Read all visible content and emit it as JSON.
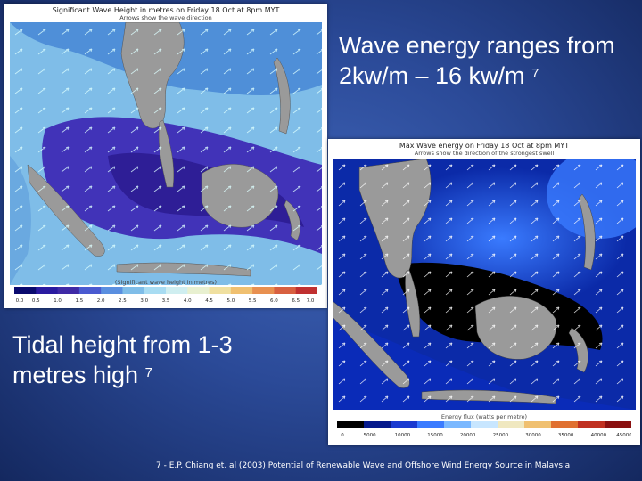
{
  "slide": {
    "wave_energy_text": "Wave energy ranges from 2kw/m – 16 kw/m",
    "wave_energy_ref": "7",
    "tidal_text": "Tidal height from 1-3 metres high",
    "tidal_ref": "7",
    "footnote": "7 - E.P. Chiang et. al (2003) Potential of Renewable Wave and Offshore Wind Energy Source in Malaysia"
  },
  "map_wave_height": {
    "title": "Significant Wave Height in metres on Friday 18 Oct at 8pm MYT",
    "subtitle": "Arrows show the wave direction",
    "scale_caption": "(Significant wave height in metres)",
    "scale_ticks": [
      "0.0",
      "0.5",
      "1.0",
      "1.5",
      "2.0",
      "2.5",
      "3.0",
      "3.5",
      "4.0",
      "4.5",
      "5.0",
      "5.5",
      "6.0",
      "6.5",
      "7.0"
    ]
  },
  "map_wave_energy": {
    "title": "Max Wave energy on Friday 18 Oct at 8pm MYT",
    "subtitle": "Arrows show the direction of the strongest swell",
    "scale_caption": "Energy flux (watts per metre)",
    "scale_ticks": [
      "0",
      "5000",
      "10000",
      "15000",
      "20000",
      "25000",
      "30000",
      "35000",
      "40000",
      "45000"
    ]
  },
  "colors": {
    "background": "#2b4a98",
    "caption_text": "#ffffff",
    "sea_height_light": "#7fbde8",
    "sea_height_dark": "#3f2aa6",
    "energy_bright": "#3a7bff",
    "energy_dark": "#061a8c",
    "land": "#9a9a9a"
  }
}
